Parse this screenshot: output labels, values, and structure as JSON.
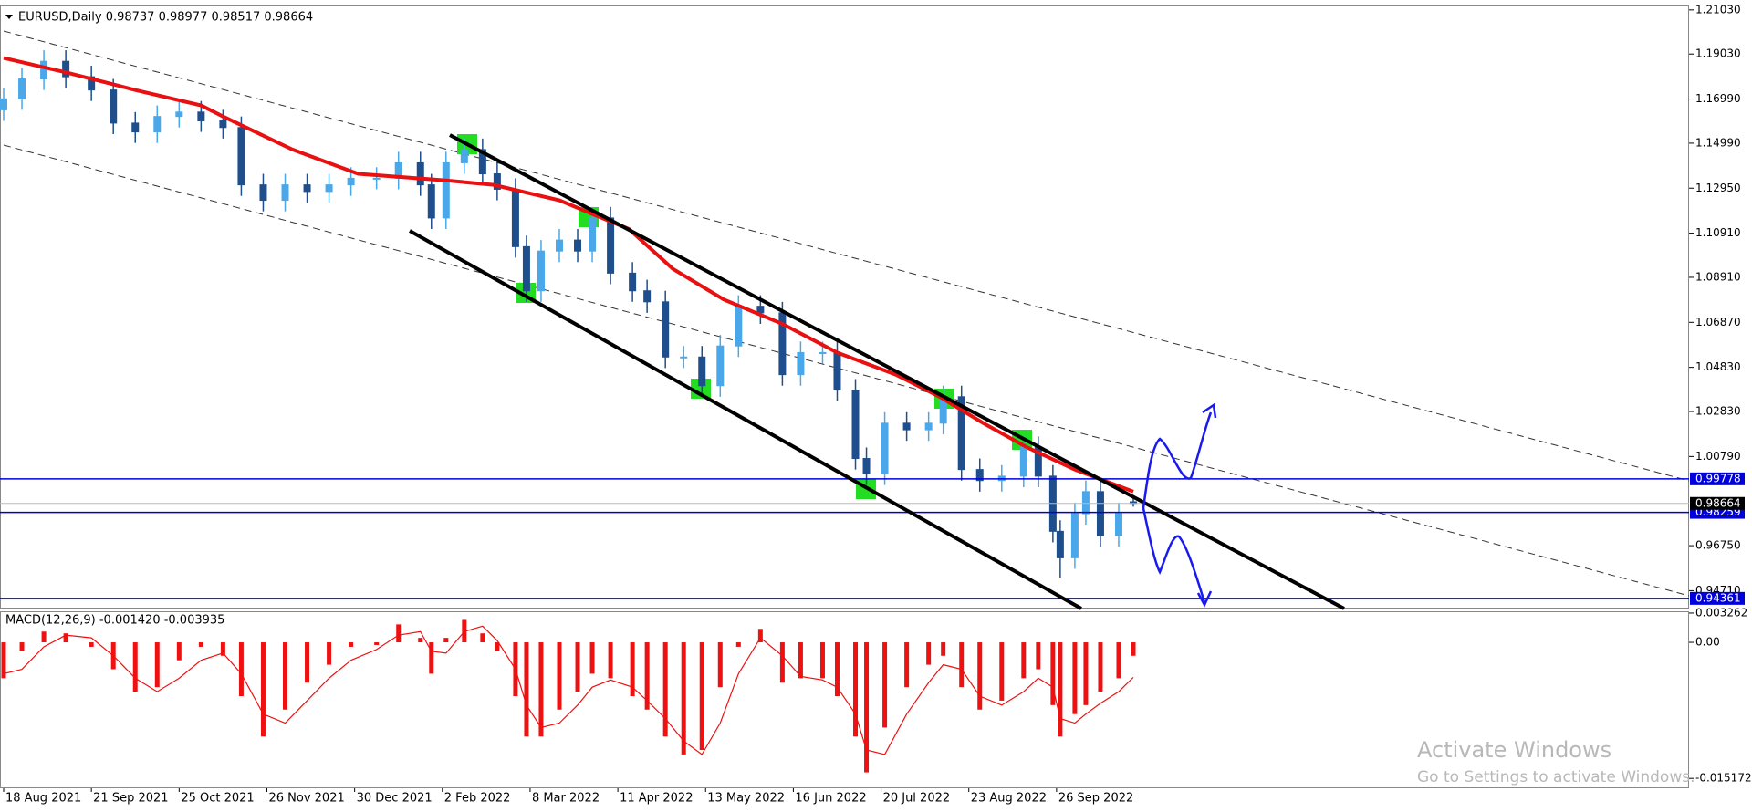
{
  "chart_data": [
    {
      "type": "candlestick",
      "title": "EURUSD,Daily  0.98737 0.98977 0.98517 0.98664",
      "x": [
        0,
        5,
        11,
        17,
        24,
        30,
        36,
        42,
        48,
        54,
        60,
        65,
        71,
        77,
        83,
        89,
        95,
        102,
        108,
        114,
        117,
        121,
        126,
        131,
        135,
        140,
        143,
        147,
        152,
        157,
        161,
        166,
        172,
        176,
        181,
        186,
        191,
        196,
        201,
        207,
        213,
        218,
        224,
        228,
        233,
        236,
        241,
        247,
        253,
        257,
        262,
        267,
        273,
        279,
        283,
        287,
        289,
        293,
        296,
        300,
        305,
        309
      ],
      "open": [
        1.165,
        1.17,
        1.179,
        1.187,
        1.18,
        1.174,
        1.159,
        1.155,
        1.162,
        1.164,
        1.16,
        1.157,
        1.131,
        1.124,
        1.131,
        1.128,
        1.131,
        1.134,
        1.134,
        1.141,
        1.131,
        1.116,
        1.141,
        1.147,
        1.136,
        1.129,
        1.103,
        1.083,
        1.101,
        1.106,
        1.101,
        1.116,
        1.091,
        1.083,
        1.078,
        1.053,
        1.053,
        1.04,
        1.058,
        1.076,
        1.073,
        1.045,
        1.055,
        1.055,
        1.038,
        1.007,
        1.0,
        1.023,
        1.02,
        1.023,
        1.035,
        1.002,
        0.997,
        0.999,
        1.012,
        0.999,
        0.974,
        0.962,
        0.982,
        0.992,
        0.972,
        0.98737
      ],
      "high": [
        1.175,
        1.184,
        1.192,
        1.192,
        1.185,
        1.179,
        1.164,
        1.167,
        1.169,
        1.169,
        1.165,
        1.162,
        1.136,
        1.136,
        1.136,
        1.136,
        1.139,
        1.139,
        1.146,
        1.146,
        1.136,
        1.146,
        1.152,
        1.152,
        1.141,
        1.134,
        1.108,
        1.106,
        1.111,
        1.111,
        1.121,
        1.121,
        1.096,
        1.088,
        1.083,
        1.058,
        1.058,
        1.063,
        1.081,
        1.081,
        1.078,
        1.06,
        1.06,
        1.06,
        1.043,
        1.012,
        1.028,
        1.028,
        1.028,
        1.04,
        1.04,
        1.007,
        1.004,
        1.017,
        1.017,
        1.004,
        0.979,
        0.987,
        0.997,
        0.997,
        0.987,
        0.98977
      ],
      "low": [
        1.16,
        1.165,
        1.174,
        1.175,
        1.169,
        1.154,
        1.15,
        1.15,
        1.157,
        1.155,
        1.152,
        1.126,
        1.119,
        1.119,
        1.123,
        1.123,
        1.126,
        1.129,
        1.129,
        1.126,
        1.111,
        1.111,
        1.136,
        1.131,
        1.124,
        1.098,
        1.078,
        1.078,
        1.096,
        1.096,
        1.096,
        1.086,
        1.078,
        1.073,
        1.048,
        1.048,
        1.035,
        1.035,
        1.053,
        1.068,
        1.04,
        1.04,
        1.05,
        1.033,
        1.002,
        0.995,
        0.995,
        1.015,
        1.015,
        1.018,
        0.997,
        0.992,
        0.992,
        0.994,
        0.994,
        0.969,
        0.953,
        0.957,
        0.977,
        0.967,
        0.967,
        0.98517
      ],
      "close": [
        1.17,
        1.179,
        1.187,
        1.18,
        1.174,
        1.159,
        1.155,
        1.162,
        1.164,
        1.16,
        1.157,
        1.131,
        1.124,
        1.131,
        1.128,
        1.131,
        1.134,
        1.134,
        1.141,
        1.131,
        1.116,
        1.141,
        1.147,
        1.136,
        1.129,
        1.103,
        1.083,
        1.101,
        1.106,
        1.101,
        1.116,
        1.091,
        1.083,
        1.078,
        1.053,
        1.053,
        1.04,
        1.058,
        1.076,
        1.073,
        1.045,
        1.055,
        1.055,
        1.038,
        1.007,
        1.0,
        1.023,
        1.02,
        1.023,
        1.035,
        1.002,
        0.997,
        0.999,
        1.012,
        0.999,
        0.974,
        0.962,
        0.982,
        0.992,
        0.972,
        0.982,
        0.98664
      ],
      "up_color": "#4aa8ea",
      "down_color": "#1f4e8c",
      "ma": {
        "x": [
          0,
          17,
          36,
          54,
          60,
          79,
          97,
          121,
          134,
          152,
          171,
          183,
          197,
          213,
          228,
          244,
          256,
          268,
          280,
          293,
          309
        ],
        "values": [
          1.1885,
          1.182,
          1.174,
          1.167,
          1.162,
          1.147,
          1.136,
          1.133,
          1.131,
          1.124,
          1.111,
          1.093,
          1.079,
          1.068,
          1.055,
          1.045,
          1.035,
          1.023,
          1.012,
          1.002,
          0.992
        ],
        "color": "#e81010"
      },
      "xlim": [
        -1,
        461
      ],
      "xticks": [
        {
          "value": 0,
          "label": "18 Aug 2021"
        },
        {
          "value": 24,
          "label": "21 Sep 2021"
        },
        {
          "value": 48,
          "label": "25 Oct 2021"
        },
        {
          "value": 72,
          "label": "26 Nov 2021"
        },
        {
          "value": 96,
          "label": "30 Dec 2021"
        },
        {
          "value": 120,
          "label": "2 Feb 2022"
        },
        {
          "value": 144,
          "label": "8 Mar 2022"
        },
        {
          "value": 168,
          "label": "11 Apr 2022"
        },
        {
          "value": 192,
          "label": "13 May 2022"
        },
        {
          "value": 216,
          "label": "16 Jun 2022"
        },
        {
          "value": 240,
          "label": "20 Jul 2022"
        },
        {
          "value": 264,
          "label": "23 Aug 2022"
        },
        {
          "value": 288,
          "label": "26 Sep 2022"
        }
      ],
      "ylim": [
        0.939,
        1.2123
      ],
      "yticks": [
        {
          "value": 1.2103,
          "label": "1.21030"
        },
        {
          "value": 1.1903,
          "label": "1.19030"
        },
        {
          "value": 1.1699,
          "label": "1.16990"
        },
        {
          "value": 1.1499,
          "label": "1.14990"
        },
        {
          "value": 1.1295,
          "label": "1.12950"
        },
        {
          "value": 1.1091,
          "label": "1.10910"
        },
        {
          "value": 1.0891,
          "label": "1.08910"
        },
        {
          "value": 1.0687,
          "label": "1.06870"
        },
        {
          "value": 1.0483,
          "label": "1.04830"
        },
        {
          "value": 1.0283,
          "label": "1.02830"
        },
        {
          "value": 1.0079,
          "label": "1.00790"
        },
        {
          "value": 0.9675,
          "label": "0.96750"
        },
        {
          "value": 0.9471,
          "label": "0.94710"
        }
      ],
      "hlines": [
        0.99778,
        0.98259,
        0.94361
      ],
      "hline_color": "#0000dd",
      "current": 0.98664,
      "watermark": {
        "title": "Activate Windows",
        "subtitle": "Go to Settings to activate Windows."
      }
    },
    {
      "type": "bar",
      "title": "MACD(12,26,9) -0.001420 -0.003935",
      "x": [
        0,
        5,
        11,
        17,
        24,
        30,
        36,
        42,
        48,
        54,
        60,
        65,
        71,
        77,
        83,
        89,
        95,
        102,
        108,
        114,
        117,
        121,
        126,
        131,
        135,
        140,
        143,
        147,
        152,
        157,
        161,
        166,
        172,
        176,
        181,
        186,
        191,
        196,
        201,
        207,
        213,
        218,
        224,
        228,
        233,
        236,
        241,
        247,
        253,
        257,
        262,
        267,
        273,
        279,
        283,
        287,
        289,
        293,
        296,
        300,
        305,
        309
      ],
      "histogram": {
        "color": "#ee1111",
        "values": [
          -0.004,
          -0.001,
          0.0012,
          0.001,
          -0.0005,
          -0.003,
          -0.0055,
          -0.005,
          -0.002,
          -0.0005,
          -0.0015,
          -0.006,
          -0.0105,
          -0.0075,
          -0.0045,
          -0.0025,
          -0.0005,
          -0.0003,
          0.002,
          0.0005,
          -0.0035,
          0.0005,
          0.0025,
          0.001,
          -0.001,
          -0.006,
          -0.0105,
          -0.0105,
          -0.0075,
          -0.0055,
          -0.0035,
          -0.004,
          -0.006,
          -0.0075,
          -0.0105,
          -0.0125,
          -0.012,
          -0.005,
          -0.0005,
          0.0015,
          -0.0045,
          -0.004,
          -0.004,
          -0.006,
          -0.0105,
          -0.0145,
          -0.0095,
          -0.005,
          -0.0025,
          -0.0015,
          -0.005,
          -0.0075,
          -0.0065,
          -0.004,
          -0.003,
          -0.007,
          -0.0105,
          -0.008,
          -0.007,
          -0.0055,
          -0.004,
          -0.0015
        ]
      },
      "signal": {
        "color": "#ee1111",
        "values": [
          -0.0035,
          -0.003,
          -0.0005,
          0.0008,
          0.0005,
          -0.0015,
          -0.004,
          -0.0055,
          -0.004,
          -0.002,
          -0.0012,
          -0.0035,
          -0.008,
          -0.009,
          -0.0065,
          -0.004,
          -0.002,
          -0.0008,
          0.0008,
          0.0012,
          -0.001,
          -0.0012,
          0.0012,
          0.0018,
          0.0002,
          -0.003,
          -0.007,
          -0.0095,
          -0.009,
          -0.007,
          -0.005,
          -0.0042,
          -0.005,
          -0.0065,
          -0.0085,
          -0.011,
          -0.0125,
          -0.009,
          -0.0035,
          0.0005,
          -0.0015,
          -0.0038,
          -0.0042,
          -0.005,
          -0.008,
          -0.012,
          -0.0125,
          -0.008,
          -0.0045,
          -0.0025,
          -0.003,
          -0.006,
          -0.007,
          -0.0055,
          -0.004,
          -0.005,
          -0.0085,
          -0.009,
          -0.008,
          -0.0068,
          -0.0055,
          -0.0039
        ]
      },
      "xlim": [
        -1,
        461
      ],
      "ylim": [
        -0.01617,
        0.00336
      ],
      "yticks": [
        0.003262,
        {
          "value": 0,
          "label": "0.00"
        },
        -0.015172
      ]
    }
  ]
}
